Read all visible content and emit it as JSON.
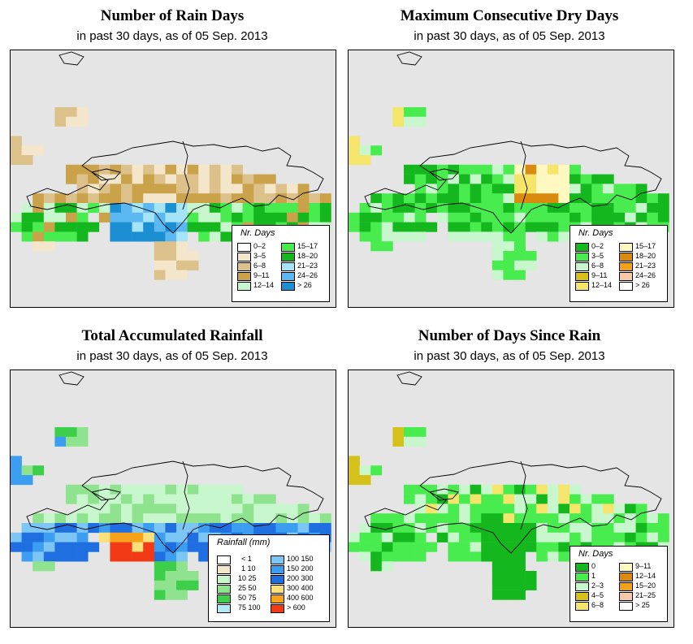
{
  "panels": [
    {
      "title": "Number of Rain Days",
      "subtitle": "in past 30 days, as of  05 Sep. 2013",
      "legend_title": "Nr. Days",
      "legend_items": [
        {
          "label": "0–2",
          "color": "#ffffff"
        },
        {
          "label": "3–5",
          "color": "#f3e6cb"
        },
        {
          "label": "6–8",
          "color": "#dcc18a"
        },
        {
          "label": "9–11",
          "color": "#c9a24a"
        },
        {
          "label": "12–14",
          "color": "#c8f6cd"
        },
        {
          "label": "15–17",
          "color": "#49ec4f"
        },
        {
          "label": "18–20",
          "color": "#14b81e"
        },
        {
          "label": "21–23",
          "color": "#a4e4f6"
        },
        {
          "label": "24–26",
          "color": "#5cb8f2"
        },
        {
          "label": "> 26",
          "color": "#1c8fd2"
        }
      ]
    },
    {
      "title": "Maximum Consecutive Dry Days",
      "subtitle": "in past 30 days, as of  05 Sep. 2013",
      "legend_title": "Nr. Days",
      "legend_items": [
        {
          "label": "0–2",
          "color": "#14b81e"
        },
        {
          "label": "3–5",
          "color": "#49ec4f"
        },
        {
          "label": "6–8",
          "color": "#c8f6cd"
        },
        {
          "label": "9–11",
          "color": "#d6c01a"
        },
        {
          "label": "12–14",
          "color": "#f6e56b"
        },
        {
          "label": "15–17",
          "color": "#fff8c0"
        },
        {
          "label": "18–20",
          "color": "#d98a0f"
        },
        {
          "label": "21–23",
          "color": "#f2a21a"
        },
        {
          "label": "24–26",
          "color": "#f8c9a8"
        },
        {
          "label": "> 26",
          "color": "#ffffff"
        }
      ]
    },
    {
      "title": "Total Accumulated Rainfall",
      "subtitle": "in past 30 days, as of  05 Sep. 2013",
      "legend_title": "Rainfall (mm)",
      "legend_items": [
        {
          "label": "< 1",
          "color": "#ffffff"
        },
        {
          "label": "1    10",
          "color": "#f3e6cb"
        },
        {
          "label": "10    25",
          "color": "#c8f6cd"
        },
        {
          "label": "25    50",
          "color": "#8fe38f"
        },
        {
          "label": "50    75",
          "color": "#3ecf4a"
        },
        {
          "label": "75   100",
          "color": "#b4eaf8"
        },
        {
          "label": "100  150",
          "color": "#7cc6f5"
        },
        {
          "label": "150  200",
          "color": "#3c9ef0"
        },
        {
          "label": "200  300",
          "color": "#1f6fe0"
        },
        {
          "label": "300  400",
          "color": "#fde07a"
        },
        {
          "label": "400  600",
          "color": "#f7a21a"
        },
        {
          "label": "> 600",
          "color": "#f23a16"
        }
      ]
    },
    {
      "title": "Number of Days Since Rain",
      "subtitle": "in past 30 days, as of  05 Sep. 2013",
      "legend_title": "Nr. Days",
      "legend_items": [
        {
          "label": "0",
          "color": "#14b81e"
        },
        {
          "label": "1",
          "color": "#49ec4f"
        },
        {
          "label": "2–3",
          "color": "#c8f6cd"
        },
        {
          "label": "4–5",
          "color": "#d6c01a"
        },
        {
          "label": "6–8",
          "color": "#f6e56b"
        },
        {
          "label": "9–11",
          "color": "#fff8c0"
        },
        {
          "label": "12–14",
          "color": "#d98a0f"
        },
        {
          "label": "15–20",
          "color": "#f2a21a"
        },
        {
          "label": "21–25",
          "color": "#f8c9a8"
        },
        {
          "label": "> 25",
          "color": "#ffffff"
        }
      ]
    }
  ]
}
